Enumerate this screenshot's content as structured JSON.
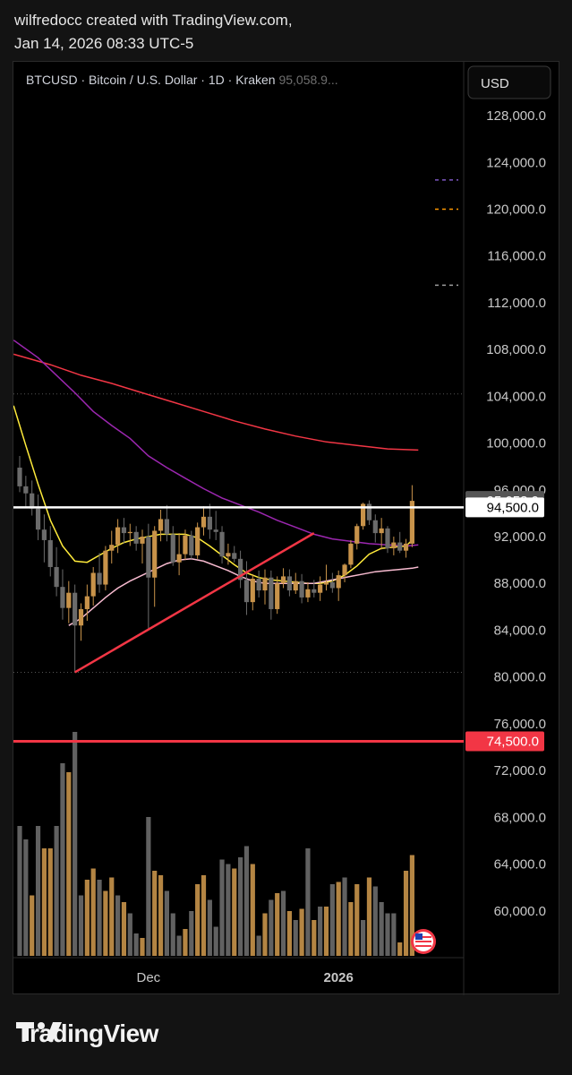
{
  "header": {
    "line1": "wilfredocc created with TradingView.com,",
    "line2": "Jan 14, 2026 08:33 UTC-5"
  },
  "symbol_info": {
    "ticker": "BTCUSD",
    "name": "Bitcoin / U.S. Dollar",
    "interval": "1D",
    "exchange": "Kraken",
    "last_price": "95,058.9..."
  },
  "currency_button": "USD",
  "footer": {
    "brand": "TradingView"
  },
  "colors": {
    "background": "#000000",
    "up": "#c8934a",
    "down": "#6b6b6b",
    "ma_red": "#f23645",
    "ma_purple": "#9c27b0",
    "ma_yellow": "#ffeb3b",
    "ma_pink": "#f8bbd0",
    "support_line": "#f23645",
    "resistance_line": "#ffffff"
  },
  "chart_data": {
    "type": "candlestick",
    "symbol": "BTCUSD",
    "y_axis": {
      "range": [
        56000,
        129000
      ],
      "ticks": [
        "128,000.0",
        "124,000.0",
        "120,000.0",
        "116,000.0",
        "112,000.0",
        "108,000.0",
        "104,000.0",
        "100,000.0",
        "96,000.0",
        "92,000.0",
        "88,000.0",
        "84,000.0",
        "80,000.0",
        "76,000.0",
        "72,000.0",
        "68,000.0",
        "64,000.0",
        "60,000.0"
      ],
      "tick_values": [
        128000,
        124000,
        120000,
        116000,
        112000,
        108000,
        104000,
        100000,
        96000,
        92000,
        88000,
        84000,
        80000,
        76000,
        72000,
        68000,
        64000,
        60000
      ]
    },
    "x_axis": {
      "labels": [
        {
          "text": "Dec",
          "bar_index": 21
        },
        {
          "text": "2026",
          "bar_index": 52
        }
      ]
    },
    "price_labels": [
      {
        "text": "95,058.9",
        "value": 95058.9,
        "style": "current"
      },
      {
        "text": "94,500.0",
        "value": 94500,
        "style": "white"
      },
      {
        "text": "74,500.0",
        "value": 74500,
        "style": "red"
      }
    ],
    "horizontal_lines": [
      {
        "name": "resistance",
        "value": 94500,
        "color": "#ffffff"
      },
      {
        "name": "support",
        "value": 74500,
        "color": "#f23645"
      },
      {
        "name": "dotted-high",
        "value": 104200,
        "style": "dotted"
      },
      {
        "name": "dotted-low",
        "value": 80400,
        "style": "dotted"
      }
    ],
    "trendline": {
      "from": {
        "bar": 9,
        "value": 80400
      },
      "to": {
        "bar": 48,
        "value": 92300
      }
    },
    "candles": [
      [
        97900,
        98900,
        95800,
        96300
      ],
      [
        96300,
        97200,
        94500,
        95700
      ],
      [
        95700,
        96800,
        93800,
        94400
      ],
      [
        94400,
        95600,
        91700,
        92600
      ],
      [
        92600,
        93900,
        89800,
        91700
      ],
      [
        91700,
        92900,
        88600,
        89400
      ],
      [
        89400,
        91100,
        86900,
        87700
      ],
      [
        87700,
        89200,
        84900,
        85900
      ],
      [
        85900,
        88200,
        84600,
        87200
      ],
      [
        87200,
        87900,
        80400,
        84400
      ],
      [
        84400,
        86300,
        83100,
        85800
      ],
      [
        85800,
        87900,
        84800,
        86900
      ],
      [
        86900,
        89400,
        86100,
        88900
      ],
      [
        88900,
        90600,
        87200,
        87900
      ],
      [
        87900,
        91200,
        87400,
        90800
      ],
      [
        90800,
        92500,
        89700,
        91300
      ],
      [
        91300,
        93500,
        90600,
        92800
      ],
      [
        92800,
        93600,
        91400,
        92300
      ],
      [
        92300,
        93100,
        91200,
        92400
      ],
      [
        92400,
        92900,
        90800,
        91400
      ],
      [
        91400,
        92600,
        89700,
        92000
      ],
      [
        92000,
        93100,
        84000,
        88500
      ],
      [
        88500,
        92900,
        86000,
        92500
      ],
      [
        92500,
        94300,
        91600,
        93500
      ],
      [
        93500,
        94700,
        91600,
        92200
      ],
      [
        92200,
        92900,
        89500,
        89800
      ],
      [
        89800,
        92300,
        88700,
        90500
      ],
      [
        90500,
        92600,
        90000,
        92100
      ],
      [
        92100,
        92500,
        90100,
        90400
      ],
      [
        90400,
        93200,
        90100,
        92800
      ],
      [
        92800,
        94600,
        92100,
        93700
      ],
      [
        93700,
        94800,
        91800,
        92600
      ],
      [
        92600,
        94200,
        91700,
        92400
      ],
      [
        92400,
        92900,
        89700,
        90300
      ],
      [
        90300,
        91400,
        89600,
        90600
      ],
      [
        90600,
        91200,
        89800,
        90100
      ],
      [
        90100,
        90800,
        87600,
        88300
      ],
      [
        88300,
        89900,
        85300,
        86400
      ],
      [
        86400,
        88800,
        85700,
        88400
      ],
      [
        88400,
        89100,
        86800,
        87400
      ],
      [
        87400,
        89200,
        86200,
        88500
      ],
      [
        88500,
        89100,
        84900,
        85800
      ],
      [
        85800,
        88600,
        85400,
        88000
      ],
      [
        88000,
        89300,
        87600,
        88600
      ],
      [
        88600,
        89200,
        86900,
        87400
      ],
      [
        87400,
        88900,
        87100,
        88200
      ],
      [
        88200,
        88800,
        86300,
        86800
      ],
      [
        86800,
        88100,
        86400,
        87500
      ],
      [
        87500,
        88300,
        86800,
        87200
      ],
      [
        87200,
        88600,
        86500,
        87900
      ],
      [
        87900,
        89600,
        87400,
        88100
      ],
      [
        88100,
        88900,
        87200,
        87600
      ],
      [
        87600,
        89100,
        86500,
        88700
      ],
      [
        88700,
        89700,
        88100,
        89600
      ],
      [
        89600,
        91700,
        89300,
        91400
      ],
      [
        91400,
        93100,
        90900,
        92900
      ],
      [
        92900,
        94900,
        92600,
        94800
      ],
      [
        94800,
        95100,
        93000,
        93400
      ],
      [
        93400,
        93900,
        91500,
        92300
      ],
      [
        92300,
        93600,
        90900,
        92700
      ],
      [
        92700,
        92900,
        90600,
        91000
      ],
      [
        91000,
        92000,
        90400,
        91500
      ],
      [
        91500,
        92400,
        90600,
        90800
      ],
      [
        90800,
        91800,
        90200,
        91400
      ],
      [
        91400,
        96400,
        91100,
        95059
      ]
    ],
    "volume": [
      {
        "value": 0.58,
        "up": false
      },
      {
        "value": 0.52,
        "up": false
      },
      {
        "value": 0.27,
        "up": true
      },
      {
        "value": 0.58,
        "up": false
      },
      {
        "value": 0.48,
        "up": true
      },
      {
        "value": 0.48,
        "up": true
      },
      {
        "value": 0.58,
        "up": false
      },
      {
        "value": 0.86,
        "up": false
      },
      {
        "value": 0.82,
        "up": true
      },
      {
        "value": 1.0,
        "up": false
      },
      {
        "value": 0.27,
        "up": false
      },
      {
        "value": 0.34,
        "up": true
      },
      {
        "value": 0.39,
        "up": true
      },
      {
        "value": 0.34,
        "up": false
      },
      {
        "value": 0.29,
        "up": true
      },
      {
        "value": 0.35,
        "up": true
      },
      {
        "value": 0.27,
        "up": false
      },
      {
        "value": 0.24,
        "up": true
      },
      {
        "value": 0.19,
        "up": false
      },
      {
        "value": 0.1,
        "up": false
      },
      {
        "value": 0.08,
        "up": true
      },
      {
        "value": 0.62,
        "up": false
      },
      {
        "value": 0.38,
        "up": true
      },
      {
        "value": 0.36,
        "up": true
      },
      {
        "value": 0.29,
        "up": false
      },
      {
        "value": 0.19,
        "up": false
      },
      {
        "value": 0.09,
        "up": false
      },
      {
        "value": 0.12,
        "up": true
      },
      {
        "value": 0.2,
        "up": false
      },
      {
        "value": 0.32,
        "up": true
      },
      {
        "value": 0.36,
        "up": true
      },
      {
        "value": 0.25,
        "up": false
      },
      {
        "value": 0.13,
        "up": false
      },
      {
        "value": 0.43,
        "up": false
      },
      {
        "value": 0.41,
        "up": false
      },
      {
        "value": 0.39,
        "up": true
      },
      {
        "value": 0.44,
        "up": false
      },
      {
        "value": 0.49,
        "up": false
      },
      {
        "value": 0.41,
        "up": true
      },
      {
        "value": 0.09,
        "up": false
      },
      {
        "value": 0.19,
        "up": true
      },
      {
        "value": 0.25,
        "up": false
      },
      {
        "value": 0.28,
        "up": true
      },
      {
        "value": 0.29,
        "up": false
      },
      {
        "value": 0.2,
        "up": true
      },
      {
        "value": 0.16,
        "up": false
      },
      {
        "value": 0.21,
        "up": true
      },
      {
        "value": 0.48,
        "up": false
      },
      {
        "value": 0.16,
        "up": true
      },
      {
        "value": 0.22,
        "up": false
      },
      {
        "value": 0.22,
        "up": true
      },
      {
        "value": 0.32,
        "up": false
      },
      {
        "value": 0.33,
        "up": true
      },
      {
        "value": 0.35,
        "up": false
      },
      {
        "value": 0.24,
        "up": true
      },
      {
        "value": 0.32,
        "up": true
      },
      {
        "value": 0.16,
        "up": false
      },
      {
        "value": 0.35,
        "up": true
      },
      {
        "value": 0.31,
        "up": false
      },
      {
        "value": 0.24,
        "up": false
      },
      {
        "value": 0.19,
        "up": false
      },
      {
        "value": 0.19,
        "up": false
      },
      {
        "value": 0.06,
        "up": true
      },
      {
        "value": 0.38,
        "up": true
      },
      {
        "value": 0.45,
        "up": true
      }
    ],
    "moving_averages": [
      {
        "name": "MA red",
        "color": "#f23645",
        "values": [
          [
            -1,
            107600
          ],
          [
            5,
            106700
          ],
          [
            10,
            105800
          ],
          [
            15,
            105100
          ],
          [
            20,
            104300
          ],
          [
            25,
            103500
          ],
          [
            30,
            102700
          ],
          [
            35,
            101900
          ],
          [
            40,
            101200
          ],
          [
            45,
            100600
          ],
          [
            50,
            100100
          ],
          [
            55,
            99800
          ],
          [
            60,
            99500
          ],
          [
            65,
            99400
          ]
        ]
      },
      {
        "name": "MA purple",
        "color": "#9c27b0",
        "values": [
          [
            -1,
            108800
          ],
          [
            3,
            107300
          ],
          [
            6,
            105800
          ],
          [
            9,
            104300
          ],
          [
            12,
            102700
          ],
          [
            15,
            101500
          ],
          [
            18,
            100400
          ],
          [
            21,
            98900
          ],
          [
            24,
            97900
          ],
          [
            27,
            97000
          ],
          [
            30,
            96100
          ],
          [
            33,
            95300
          ],
          [
            36,
            94700
          ],
          [
            39,
            94100
          ],
          [
            42,
            93400
          ],
          [
            45,
            92800
          ],
          [
            48,
            92200
          ],
          [
            51,
            91800
          ],
          [
            54,
            91600
          ],
          [
            57,
            91400
          ],
          [
            60,
            91300
          ],
          [
            63,
            91200
          ],
          [
            65,
            91300
          ]
        ]
      },
      {
        "name": "MA yellow",
        "color": "#ffeb3b",
        "values": [
          [
            -1,
            103200
          ],
          [
            1,
            99800
          ],
          [
            3,
            96500
          ],
          [
            5,
            93400
          ],
          [
            7,
            91200
          ],
          [
            9,
            89900
          ],
          [
            11,
            89800
          ],
          [
            13,
            90400
          ],
          [
            15,
            91000
          ],
          [
            17,
            91500
          ],
          [
            19,
            91800
          ],
          [
            21,
            92000
          ],
          [
            23,
            92200
          ],
          [
            25,
            92200
          ],
          [
            27,
            92200
          ],
          [
            29,
            91900
          ],
          [
            31,
            91200
          ],
          [
            33,
            90400
          ],
          [
            35,
            89600
          ],
          [
            37,
            88900
          ],
          [
            39,
            88500
          ],
          [
            41,
            88300
          ],
          [
            43,
            88200
          ],
          [
            45,
            88100
          ],
          [
            47,
            88000
          ],
          [
            49,
            88000
          ],
          [
            51,
            88200
          ],
          [
            53,
            88700
          ],
          [
            55,
            89500
          ],
          [
            57,
            90500
          ],
          [
            59,
            91000
          ],
          [
            61,
            91100
          ],
          [
            63,
            91200
          ],
          [
            64,
            91700
          ]
        ]
      },
      {
        "name": "MA pink",
        "color": "#f8bbd0",
        "values": [
          [
            8,
            84400
          ],
          [
            10,
            85000
          ],
          [
            12,
            85900
          ],
          [
            14,
            86800
          ],
          [
            16,
            87600
          ],
          [
            18,
            88200
          ],
          [
            20,
            88700
          ],
          [
            22,
            89200
          ],
          [
            24,
            89700
          ],
          [
            26,
            90000
          ],
          [
            28,
            90100
          ],
          [
            30,
            89900
          ],
          [
            32,
            89500
          ],
          [
            34,
            89100
          ],
          [
            36,
            88600
          ],
          [
            38,
            88200
          ],
          [
            40,
            88000
          ],
          [
            42,
            88000
          ],
          [
            44,
            88000
          ],
          [
            46,
            88000
          ],
          [
            48,
            88000
          ],
          [
            50,
            88200
          ],
          [
            52,
            88400
          ],
          [
            54,
            88600
          ],
          [
            56,
            88800
          ],
          [
            58,
            89000
          ],
          [
            60,
            89100
          ],
          [
            62,
            89200
          ],
          [
            64,
            89300
          ],
          [
            65,
            89400
          ]
        ]
      }
    ],
    "right_markers": [
      {
        "value": 122500,
        "color": "#7e57c2"
      },
      {
        "value": 120000,
        "color": "#ff9800"
      },
      {
        "value": 113500,
        "color": "#9e9e9e"
      }
    ]
  }
}
